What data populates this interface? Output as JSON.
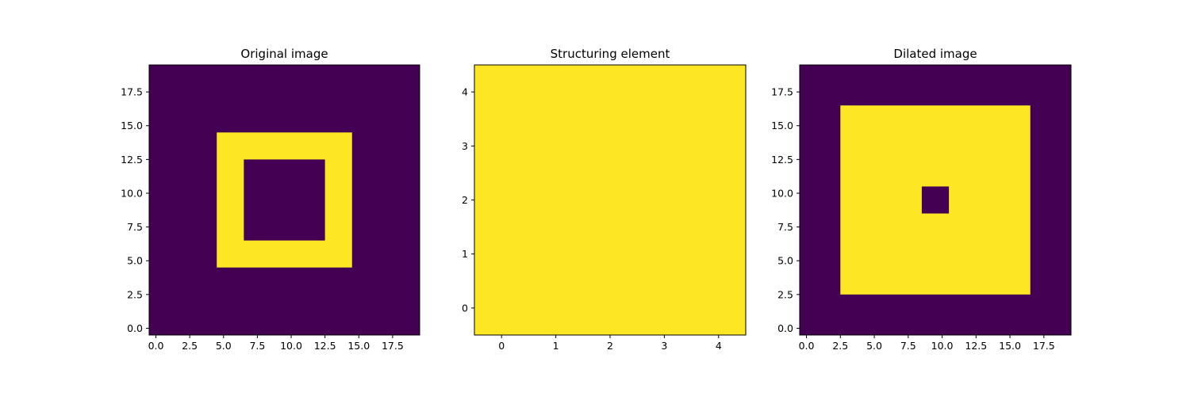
{
  "colors": {
    "low": "#440154",
    "high": "#fde725",
    "axis": "#000000"
  },
  "chart_data": [
    {
      "type": "heatmap",
      "title": "Original image",
      "rows": 20,
      "cols": 20,
      "filled_rects": [
        {
          "r0": 5,
          "r1": 14,
          "c0": 5,
          "c1": 14,
          "value": 1
        },
        {
          "r0": 7,
          "r1": 12,
          "c0": 7,
          "c1": 12,
          "value": 0
        }
      ],
      "xticks": [
        "0.0",
        "2.5",
        "5.0",
        "7.5",
        "10.0",
        "12.5",
        "15.0",
        "17.5"
      ],
      "yticks": [
        "0.0",
        "2.5",
        "5.0",
        "7.5",
        "10.0",
        "12.5",
        "15.0",
        "17.5"
      ],
      "tick_values": [
        0,
        2.5,
        5,
        7.5,
        10,
        12.5,
        15,
        17.5
      ],
      "xlim": [
        -0.5,
        19.5
      ],
      "ylim": [
        19.5,
        -0.5
      ]
    },
    {
      "type": "heatmap",
      "title": "Structuring element",
      "rows": 5,
      "cols": 5,
      "filled_rects": [
        {
          "r0": 0,
          "r1": 4,
          "c0": 0,
          "c1": 4,
          "value": 1
        }
      ],
      "xticks": [
        "0",
        "1",
        "2",
        "3",
        "4"
      ],
      "yticks": [
        "0",
        "1",
        "2",
        "3",
        "4"
      ],
      "tick_values": [
        0,
        1,
        2,
        3,
        4
      ],
      "xlim": [
        -0.5,
        4.5
      ],
      "ylim": [
        4.5,
        -0.5
      ]
    },
    {
      "type": "heatmap",
      "title": "Dilated image",
      "rows": 20,
      "cols": 20,
      "filled_rects": [
        {
          "r0": 3,
          "r1": 16,
          "c0": 3,
          "c1": 16,
          "value": 1
        },
        {
          "r0": 9,
          "r1": 10,
          "c0": 9,
          "c1": 10,
          "value": 0
        }
      ],
      "xticks": [
        "0.0",
        "2.5",
        "5.0",
        "7.5",
        "10.0",
        "12.5",
        "15.0",
        "17.5"
      ],
      "yticks": [
        "0.0",
        "2.5",
        "5.0",
        "7.5",
        "10.0",
        "12.5",
        "15.0",
        "17.5"
      ],
      "tick_values": [
        0,
        2.5,
        5,
        7.5,
        10,
        12.5,
        15,
        17.5
      ],
      "xlim": [
        -0.5,
        19.5
      ],
      "ylim": [
        19.5,
        -0.5
      ]
    }
  ]
}
